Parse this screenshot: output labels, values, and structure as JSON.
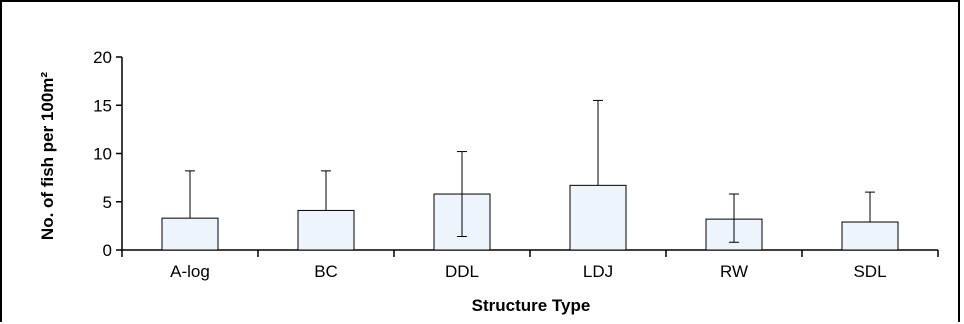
{
  "chart_data": {
    "type": "bar",
    "title": "",
    "xlabel": "Structure Type",
    "ylabel": "No. of fish per 100m²",
    "categories": [
      "A-log",
      "BC",
      "DDL",
      "LDJ",
      "RW",
      "SDL"
    ],
    "values": [
      3.3,
      4.1,
      5.8,
      6.7,
      3.2,
      2.9
    ],
    "error_upper": [
      8.2,
      8.2,
      10.2,
      15.5,
      5.8,
      6.0
    ],
    "error_lower": [
      3.3,
      4.1,
      1.4,
      6.7,
      0.8,
      2.9
    ],
    "ylim": [
      0,
      20
    ],
    "yticks": [
      0,
      5,
      10,
      15,
      20
    ],
    "grid": false,
    "legend": "none"
  },
  "colors": {
    "bar_fill": "#eef4fb",
    "bar_stroke": "#000000",
    "axis": "#000000"
  }
}
